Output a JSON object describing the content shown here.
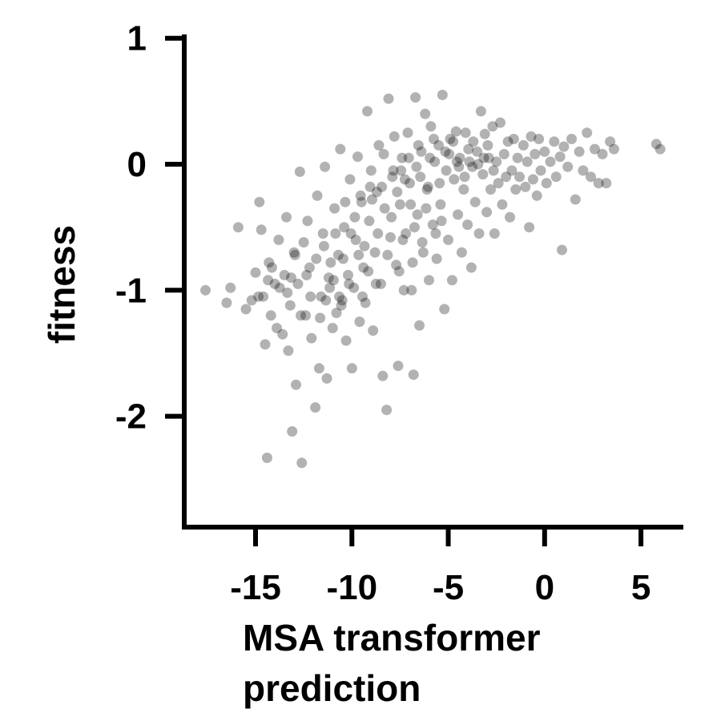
{
  "chart_data": {
    "type": "scatter",
    "title": "",
    "xlabel_lines": [
      "MSA transformer",
      "prediction"
    ],
    "ylabel": "fitness",
    "xlim": [
      -18.7,
      7.2
    ],
    "ylim": [
      -2.88,
      1.03
    ],
    "xticks": [
      -15,
      -10,
      -5,
      0,
      5
    ],
    "xtick_labels": [
      "-15",
      "-10",
      "-5",
      "0",
      "5"
    ],
    "yticks": [
      1,
      0,
      -1,
      -2
    ],
    "ytick_labels": [
      "1",
      "0",
      "-1",
      "-2"
    ],
    "grid": false,
    "legend": "none",
    "point_color": "#000000",
    "point_opacity": 0.3,
    "series": [
      {
        "points": [
          [
            -17.6,
            -1.0
          ],
          [
            -16.5,
            -1.1
          ],
          [
            -16.3,
            -0.98
          ],
          [
            -15.9,
            -0.5
          ],
          [
            -15.5,
            -1.15
          ],
          [
            -15.2,
            -1.08
          ],
          [
            -15.0,
            -0.86
          ],
          [
            -14.8,
            -0.3
          ],
          [
            -14.7,
            -0.52
          ],
          [
            -14.6,
            -1.05
          ],
          [
            -14.5,
            -1.43
          ],
          [
            -14.4,
            -2.33
          ],
          [
            -14.3,
            -0.78
          ],
          [
            -14.2,
            -1.2
          ],
          [
            -14.0,
            -0.95
          ],
          [
            -13.9,
            -1.3
          ],
          [
            -13.8,
            -0.6
          ],
          [
            -13.6,
            -1.35
          ],
          [
            -13.5,
            -0.88
          ],
          [
            -13.4,
            -0.42
          ],
          [
            -13.3,
            -1.48
          ],
          [
            -13.2,
            -1.12
          ],
          [
            -13.1,
            -2.12
          ],
          [
            -13.0,
            -0.7
          ],
          [
            -12.9,
            -1.75
          ],
          [
            -12.8,
            -0.95
          ],
          [
            -12.7,
            -0.06
          ],
          [
            -12.6,
            -2.37
          ],
          [
            -12.4,
            -1.2
          ],
          [
            -12.3,
            -0.45
          ],
          [
            -12.2,
            -0.82
          ],
          [
            -12.1,
            -1.38
          ],
          [
            -11.9,
            -1.93
          ],
          [
            -11.8,
            -0.25
          ],
          [
            -11.7,
            -1.62
          ],
          [
            -11.6,
            -1.05
          ],
          [
            -11.5,
            -0.55
          ],
          [
            -11.4,
            -0.02
          ],
          [
            -11.3,
            -1.7
          ],
          [
            -11.2,
            -0.9
          ],
          [
            -11.0,
            -1.3
          ],
          [
            -10.9,
            -0.35
          ],
          [
            -10.8,
            -1.18
          ],
          [
            -10.7,
            -0.72
          ],
          [
            -10.6,
            0.12
          ],
          [
            -10.5,
            -1.08
          ],
          [
            -10.4,
            -0.5
          ],
          [
            -10.3,
            -1.4
          ],
          [
            -10.2,
            -0.88
          ],
          [
            -10.1,
            -0.12
          ],
          [
            -10.0,
            -1.62
          ],
          [
            -9.9,
            -0.98
          ],
          [
            -9.8,
            -0.6
          ],
          [
            -9.7,
            0.06
          ],
          [
            -9.6,
            -1.25
          ],
          [
            -9.5,
            -0.3
          ],
          [
            -9.4,
            -0.82
          ],
          [
            -9.3,
            -1.1
          ],
          [
            -9.2,
            0.42
          ],
          [
            -9.1,
            -0.45
          ],
          [
            -9.0,
            -0.05
          ],
          [
            -8.9,
            -1.32
          ],
          [
            -8.8,
            -0.7
          ],
          [
            -8.7,
            -0.22
          ],
          [
            -8.6,
            0.15
          ],
          [
            -8.5,
            -0.95
          ],
          [
            -8.4,
            -1.68
          ],
          [
            -8.3,
            -0.35
          ],
          [
            -8.2,
            -1.95
          ],
          [
            -8.1,
            0.52
          ],
          [
            -8.0,
            -0.58
          ],
          [
            -7.9,
            -0.1
          ],
          [
            -7.8,
            0.22
          ],
          [
            -7.7,
            -0.8
          ],
          [
            -7.6,
            -1.6
          ],
          [
            -7.5,
            -0.32
          ],
          [
            -7.4,
            0.05
          ],
          [
            -7.3,
            -1.0
          ],
          [
            -7.2,
            -0.55
          ],
          [
            -7.1,
            0.25
          ],
          [
            -7.0,
            -0.15
          ],
          [
            -6.9,
            -1.0
          ],
          [
            -6.8,
            -1.67
          ],
          [
            -6.7,
            0.53
          ],
          [
            -6.6,
            -0.4
          ],
          [
            -6.5,
            -1.28
          ],
          [
            -6.4,
            0.1
          ],
          [
            -6.3,
            -0.7
          ],
          [
            -6.2,
            0.4
          ],
          [
            -6.1,
            -0.2
          ],
          [
            -6.0,
            -0.92
          ],
          [
            -5.9,
            0.3
          ],
          [
            -5.8,
            -0.48
          ],
          [
            -5.7,
            0.02
          ],
          [
            -5.6,
            -0.75
          ],
          [
            -5.5,
            0.15
          ],
          [
            -5.4,
            -0.32
          ],
          [
            -5.3,
            0.55
          ],
          [
            -5.2,
            -1.15
          ],
          [
            -5.1,
            -0.05
          ],
          [
            -5.0,
            -0.6
          ],
          [
            -4.9,
            0.2
          ],
          [
            -4.8,
            -0.92
          ],
          [
            -4.7,
            -0.12
          ],
          [
            -4.6,
            0.26
          ],
          [
            -4.5,
            -0.4
          ],
          [
            -4.4,
            0.05
          ],
          [
            -4.3,
            -0.7
          ],
          [
            -4.2,
            -0.2
          ],
          [
            -4.1,
            0.25
          ],
          [
            -4.0,
            -0.48
          ],
          [
            -3.9,
            0.02
          ],
          [
            -3.8,
            -0.82
          ],
          [
            -3.7,
            0.18
          ],
          [
            -3.6,
            -0.3
          ],
          [
            -3.5,
            0.1
          ],
          [
            -3.4,
            -0.55
          ],
          [
            -3.3,
            0.42
          ],
          [
            -3.2,
            -0.08
          ],
          [
            -3.1,
            0.24
          ],
          [
            -3.0,
            -0.38
          ],
          [
            -2.9,
            0.05
          ],
          [
            -2.8,
            -0.2
          ],
          [
            -2.7,
            0.3
          ],
          [
            -2.6,
            -0.55
          ],
          [
            -2.5,
            0.02
          ],
          [
            -2.4,
            -0.15
          ],
          [
            -2.3,
            0.33
          ],
          [
            -2.2,
            -0.32
          ],
          [
            -2.1,
            0.08
          ],
          [
            -2.0,
            -0.1
          ],
          [
            -1.9,
            0.18
          ],
          [
            -1.8,
            -0.42
          ],
          [
            -1.7,
            -0.05
          ],
          [
            -1.6,
            0.2
          ],
          [
            -1.5,
            -0.2
          ],
          [
            -1.4,
            0.05
          ],
          [
            -1.3,
            -0.1
          ],
          [
            -1.1,
            0.15
          ],
          [
            -1.0,
            -0.18
          ],
          [
            -0.9,
            0.02
          ],
          [
            -0.8,
            -0.5
          ],
          [
            -0.7,
            0.22
          ],
          [
            -0.6,
            -0.12
          ],
          [
            -0.5,
            0.08
          ],
          [
            -0.4,
            -0.25
          ],
          [
            -0.3,
            0.2
          ],
          [
            -0.2,
            -0.05
          ],
          [
            0.0,
            0.1
          ],
          [
            0.1,
            -0.15
          ],
          [
            0.3,
            0.02
          ],
          [
            0.5,
            0.18
          ],
          [
            0.6,
            -0.1
          ],
          [
            0.8,
            0.06
          ],
          [
            0.9,
            -0.68
          ],
          [
            1.0,
            0.14
          ],
          [
            1.2,
            -0.02
          ],
          [
            1.4,
            0.2
          ],
          [
            1.6,
            -0.28
          ],
          [
            1.8,
            0.1
          ],
          [
            2.0,
            -0.05
          ],
          [
            2.2,
            0.25
          ],
          [
            2.4,
            -0.1
          ],
          [
            2.6,
            0.12
          ],
          [
            2.8,
            -0.15
          ],
          [
            3.0,
            0.08
          ],
          [
            3.2,
            -0.15
          ],
          [
            3.4,
            0.18
          ],
          [
            3.6,
            0.12
          ],
          [
            5.8,
            0.16
          ],
          [
            6.0,
            0.12
          ],
          [
            -12.5,
            -0.62
          ],
          [
            -11.1,
            -0.78
          ],
          [
            -10.95,
            -0.92
          ],
          [
            -10.45,
            -0.75
          ],
          [
            -9.85,
            -0.42
          ],
          [
            -9.35,
            -0.65
          ],
          [
            -8.95,
            -0.28
          ],
          [
            -8.45,
            -0.18
          ],
          [
            -7.95,
            -0.42
          ],
          [
            -7.45,
            -0.05
          ],
          [
            -6.95,
            -0.32
          ],
          [
            -6.45,
            -0.1
          ],
          [
            -5.95,
            0.05
          ],
          [
            -5.45,
            -0.15
          ],
          [
            -4.95,
            0.08
          ],
          [
            -4.45,
            -0.02
          ],
          [
            -3.95,
            0.12
          ],
          [
            -3.45,
            0.0
          ],
          [
            -7.65,
            -0.22
          ],
          [
            -6.75,
            -0.5
          ],
          [
            -8.15,
            -0.72
          ],
          [
            -9.15,
            -0.85
          ],
          [
            -10.15,
            -0.95
          ],
          [
            -11.15,
            -0.98
          ],
          [
            -12.15,
            -1.05
          ],
          [
            -13.15,
            -0.9
          ],
          [
            -13.75,
            -0.98
          ],
          [
            -14.15,
            -0.82
          ],
          [
            -12.65,
            -1.2
          ],
          [
            -11.65,
            -1.22
          ],
          [
            -10.65,
            -1.05
          ],
          [
            -9.65,
            -0.72
          ],
          [
            -8.65,
            -0.55
          ],
          [
            -7.35,
            -0.6
          ],
          [
            -6.15,
            -0.35
          ],
          [
            -5.35,
            -0.45
          ],
          [
            -4.15,
            -0.1
          ],
          [
            -3.15,
            0.05
          ],
          [
            -2.65,
            -0.05
          ],
          [
            -7.05,
            0.05
          ],
          [
            -6.55,
            0.15
          ],
          [
            -5.75,
            0.2
          ],
          [
            -4.75,
            0.18
          ],
          [
            -8.35,
            0.08
          ],
          [
            -9.05,
            -0.18
          ],
          [
            -10.05,
            -0.55
          ],
          [
            -11.45,
            -0.65
          ],
          [
            -12.95,
            -0.72
          ],
          [
            -7.85,
            -0.05
          ],
          [
            -7.25,
            -0.12
          ],
          [
            -6.65,
            -0.02
          ],
          [
            -6.05,
            -0.18
          ],
          [
            -5.15,
            0.1
          ],
          [
            -4.55,
            0.02
          ],
          [
            -3.75,
            -0.02
          ],
          [
            -2.95,
            0.15
          ],
          [
            -9.55,
            -0.25
          ],
          [
            -10.35,
            -0.3
          ],
          [
            -10.85,
            -0.55
          ],
          [
            -11.85,
            -0.75
          ],
          [
            -12.35,
            -0.88
          ],
          [
            -13.35,
            -1.02
          ],
          [
            -14.35,
            -0.92
          ],
          [
            -14.85,
            -1.05
          ],
          [
            -11.35,
            -1.08
          ],
          [
            -10.55,
            -1.12
          ],
          [
            -9.45,
            -1.05
          ],
          [
            -8.75,
            -0.95
          ],
          [
            -7.55,
            -0.85
          ],
          [
            -6.85,
            -0.78
          ],
          [
            -6.35,
            -0.62
          ],
          [
            -5.65,
            -0.55
          ]
        ]
      }
    ]
  }
}
